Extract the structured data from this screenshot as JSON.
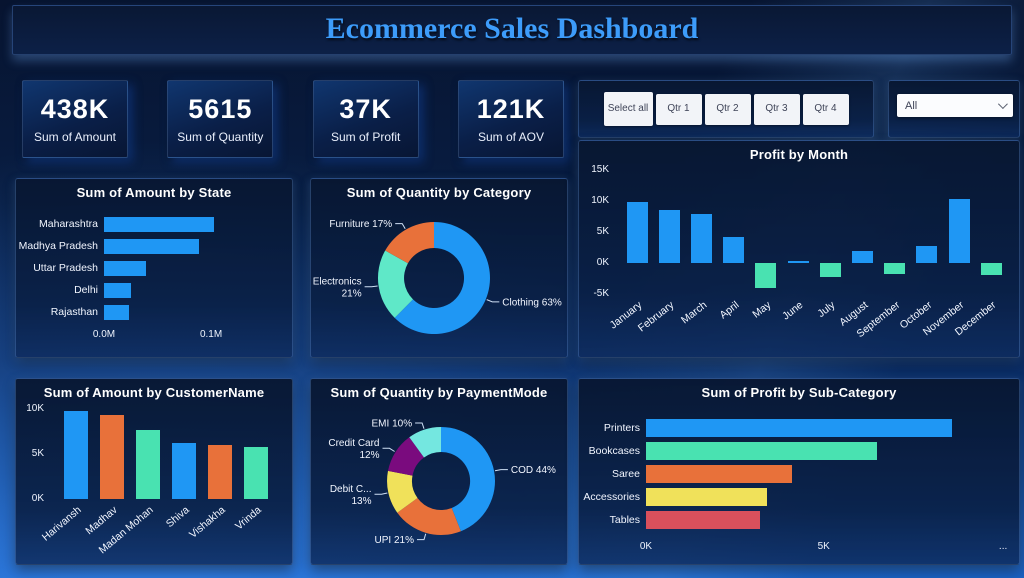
{
  "page_title": "Ecommerce Sales Dashboard",
  "theme": {
    "title_color": "#3d9cfa",
    "blue": "#1f97f4",
    "mint": "#49e2b1",
    "orange": "#e8713a",
    "yellow": "#f0e15a",
    "red": "#d9505c",
    "purple": "#7a0b7e",
    "cyan": "#74e7e0"
  },
  "kpis": [
    {
      "value": "438K",
      "label": "Sum of Amount"
    },
    {
      "value": "5615",
      "label": "Sum of Quantity"
    },
    {
      "value": "37K",
      "label": "Sum of Profit"
    },
    {
      "value": "121K",
      "label": "Sum of AOV"
    }
  ],
  "quarter_slicer": {
    "buttons": [
      "Select all",
      "Qtr 1",
      "Qtr 2",
      "Qtr 3",
      "Qtr 4"
    ]
  },
  "filter_dropdown": {
    "value": "All"
  },
  "chart_data": [
    {
      "id": "amount-by-state",
      "type": "barh",
      "title": "Sum of Amount by State",
      "categories": [
        "Maharashtra",
        "Madhya Pradesh",
        "Uttar Pradesh",
        "Delhi",
        "Rajasthan"
      ],
      "values": [
        0.103,
        0.089,
        0.039,
        0.025,
        0.023
      ],
      "unit": "M",
      "xlim": [
        0,
        0.17
      ],
      "xticks": [
        {
          "value": 0,
          "label": "0.0M"
        },
        {
          "value": 0.1,
          "label": "0.1M"
        }
      ],
      "bar_color": "#1f97f4"
    },
    {
      "id": "quantity-by-category",
      "type": "donut",
      "title": "Sum of Quantity by Category",
      "slices": [
        {
          "name": "Clothing",
          "pct": 63,
          "color": "#1f97f4",
          "label_lines": [
            "Clothing 63%"
          ]
        },
        {
          "name": "Electronics",
          "pct": 21,
          "color": "#5fe8c8",
          "label_lines": [
            "Electronics",
            "21%"
          ]
        },
        {
          "name": "Furniture",
          "pct": 17,
          "color": "#e8713a",
          "label_lines": [
            "Furniture 17%"
          ]
        }
      ]
    },
    {
      "id": "profit-by-month",
      "type": "column",
      "title": "Profit by Month",
      "categories": [
        "January",
        "February",
        "March",
        "April",
        "May",
        "June",
        "July",
        "August",
        "September",
        "October",
        "November",
        "December"
      ],
      "values": [
        9.9,
        8.5,
        7.9,
        4.2,
        -4.1,
        0.4,
        -2.2,
        2.0,
        -1.7,
        2.8,
        10.3,
        -2.0
      ],
      "unit": "K",
      "ylim": [
        -5,
        15
      ],
      "yticks": [
        {
          "value": 15,
          "label": "15K"
        },
        {
          "value": 10,
          "label": "10K"
        },
        {
          "value": 5,
          "label": "5K"
        },
        {
          "value": 0,
          "label": "0K"
        },
        {
          "value": -5,
          "label": "-5K"
        }
      ],
      "positive_color": "#1f97f4",
      "negative_color": "#49e2b1"
    },
    {
      "id": "amount-by-customer",
      "type": "column",
      "title": "Sum of Amount by CustomerName",
      "categories": [
        "Harivansh",
        "Madhav",
        "Madan Mohan",
        "Shiva",
        "Vishakha",
        "Vrinda"
      ],
      "values": [
        9.8,
        9.3,
        7.7,
        6.2,
        6.0,
        5.8
      ],
      "unit": "K",
      "ylim": [
        0,
        10
      ],
      "yticks": [
        {
          "value": 10,
          "label": "10K"
        },
        {
          "value": 5,
          "label": "5K"
        },
        {
          "value": 0,
          "label": "0K"
        }
      ],
      "bar_colors": [
        "#1f97f4",
        "#e8713a",
        "#49e2b1",
        "#1f97f4",
        "#e8713a",
        "#49e2b1"
      ]
    },
    {
      "id": "quantity-by-paymentmode",
      "type": "donut",
      "title": "Sum of Quantity by PaymentMode",
      "slices": [
        {
          "name": "COD",
          "pct": 44,
          "color": "#1f97f4",
          "label_lines": [
            "COD 44%"
          ]
        },
        {
          "name": "UPI",
          "pct": 21,
          "color": "#e8713a",
          "label_lines": [
            "UPI 21%"
          ]
        },
        {
          "name": "Debit Card",
          "pct": 13,
          "color": "#f0e15a",
          "label_lines": [
            "Debit C...",
            "13%"
          ]
        },
        {
          "name": "Credit Card",
          "pct": 12,
          "color": "#7a0b7e",
          "label_lines": [
            "Credit Card",
            "12%"
          ]
        },
        {
          "name": "EMI",
          "pct": 10,
          "color": "#74e7e0",
          "label_lines": [
            "EMI 10%"
          ]
        }
      ]
    },
    {
      "id": "profit-by-subcategory",
      "type": "barh",
      "title": "Sum of Profit by Sub-Category",
      "categories": [
        "Printers",
        "Bookcases",
        "Saree",
        "Accessories",
        "Tables"
      ],
      "values": [
        8.6,
        6.5,
        4.1,
        3.4,
        3.2
      ],
      "unit": "K",
      "xlim": [
        0,
        10.3
      ],
      "xticks": [
        {
          "value": 0,
          "label": "0K"
        },
        {
          "value": 5,
          "label": "5K"
        },
        {
          "value": 10.05,
          "label": "..."
        }
      ],
      "bar_colors": [
        "#1f97f4",
        "#49e2b1",
        "#e8713a",
        "#f0e15a",
        "#d9505c"
      ]
    }
  ]
}
